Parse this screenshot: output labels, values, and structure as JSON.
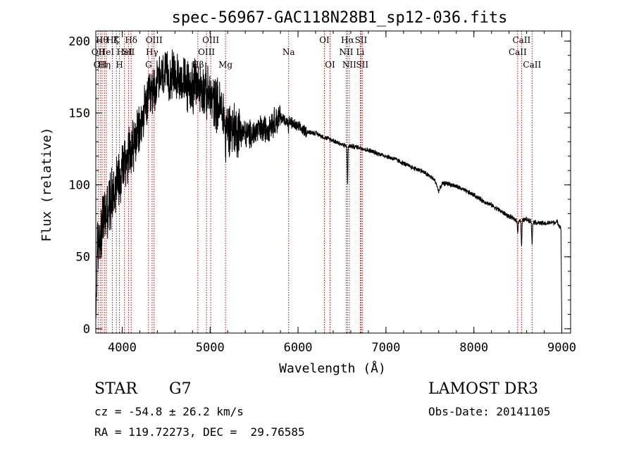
{
  "chart_data": {
    "type": "line",
    "title": "spec-56967-GAC118N28B1_sp12-036.fits",
    "xlabel": "Wavelength (Å)",
    "ylabel": "Flux (relative)",
    "xlim": [
      3700,
      9100
    ],
    "ylim": [
      -3,
      207
    ],
    "xticks": [
      4000,
      5000,
      6000,
      7000,
      8000,
      9000
    ],
    "yticks": [
      0,
      50,
      100,
      150,
      200
    ],
    "grid": false,
    "series": [
      {
        "name": "flux",
        "anchors": {
          "x": [
            3700,
            3705,
            3710,
            3720,
            3740,
            3780,
            3820,
            3860,
            3900,
            3950,
            4000,
            4050,
            4100,
            4150,
            4200,
            4250,
            4300,
            4350,
            4400,
            4450,
            4500,
            4550,
            4600,
            4650,
            4700,
            4750,
            4800,
            4850,
            4900,
            4950,
            5000,
            5050,
            5100,
            5150,
            5200,
            5250,
            5300,
            5350,
            5400,
            5450,
            5500,
            5550,
            5600,
            5650,
            5700,
            5750,
            5800,
            5850,
            5900,
            5950,
            6000,
            6100,
            6200,
            6300,
            6400,
            6500,
            6560,
            6600,
            6700,
            6800,
            6900,
            7000,
            7100,
            7200,
            7300,
            7400,
            7500,
            7600,
            7700,
            7800,
            7900,
            8000,
            8100,
            8200,
            8300,
            8400,
            8500,
            8600,
            8700,
            8800,
            8900,
            8950,
            8990,
            9000
          ],
          "y": [
            0,
            30,
            45,
            55,
            65,
            75,
            80,
            88,
            95,
            105,
            112,
            120,
            125,
            130,
            138,
            150,
            160,
            165,
            172,
            175,
            175,
            176,
            175,
            174,
            172,
            168,
            168,
            170,
            168,
            165,
            160,
            158,
            155,
            150,
            140,
            140,
            138,
            138,
            135,
            135,
            136,
            138,
            138,
            140,
            143,
            145,
            147,
            145,
            144,
            142,
            140,
            137,
            136,
            133,
            131,
            128,
            127,
            127,
            126,
            124,
            122,
            120,
            118,
            115,
            112,
            110,
            106,
            101,
            101,
            99,
            96,
            93,
            89,
            86,
            82,
            78,
            75,
            76,
            74,
            73,
            74,
            74,
            70,
            0
          ]
        },
        "noise": [
          {
            "x": [
              3700,
              4150
            ],
            "amp": 25
          },
          {
            "x": [
              4150,
              4700
            ],
            "amp": 20
          },
          {
            "x": [
              4700,
              5350
            ],
            "amp": 22
          },
          {
            "x": [
              5350,
              5800
            ],
            "amp": 12
          },
          {
            "x": [
              5800,
              6100
            ],
            "amp": 5
          },
          {
            "x": [
              6100,
              9000
            ],
            "amp": 2
          }
        ],
        "absorption": [
          {
            "x": 6563,
            "depth": 28,
            "width": 5
          },
          {
            "x": 8498,
            "depth": 8,
            "width": 6
          },
          {
            "x": 8542,
            "depth": 18,
            "width": 6
          },
          {
            "x": 8662,
            "depth": 16,
            "width": 6
          },
          {
            "x": 7600,
            "depth": 5,
            "width": 25
          },
          {
            "x": 5890,
            "depth": 6,
            "width": 5
          },
          {
            "x": 5175,
            "depth": 15,
            "width": 8
          }
        ]
      }
    ],
    "line_markers": {
      "color": "#d00000",
      "lines": [
        {
          "x": 3727,
          "label": "OII",
          "row": 2
        },
        {
          "x": 3750,
          "label": "OII",
          "row": 3
        },
        {
          "x": 3771,
          "label": "Hθ",
          "row": 1
        },
        {
          "x": 3798,
          "label": "Hη",
          "row": 3
        },
        {
          "x": 3820,
          "label": "HeI",
          "row": 2
        },
        {
          "x": 3889,
          "label": "Hζ",
          "row": 1
        },
        {
          "x": 3934,
          "label": "K",
          "row": 1
        },
        {
          "x": 3969,
          "label": "H",
          "row": 3
        },
        {
          "x": 4026,
          "label": "HeI",
          "row": 2
        },
        {
          "x": 4072,
          "label": "SII",
          "row": 2
        },
        {
          "x": 4102,
          "label": "Hδ",
          "row": 1
        },
        {
          "x": 4300,
          "label": "G",
          "row": 3
        },
        {
          "x": 4340,
          "label": "Hγ",
          "row": 2
        },
        {
          "x": 4363,
          "label": "OIII",
          "row": 1
        },
        {
          "x": 4861,
          "label": "Hβ",
          "row": 3
        },
        {
          "x": 4959,
          "label": "OIII",
          "row": 2
        },
        {
          "x": 5007,
          "label": "OIII",
          "row": 1
        },
        {
          "x": 5175,
          "label": "Mg",
          "row": 3
        },
        {
          "x": 5893,
          "label": "Na",
          "row": 2
        },
        {
          "x": 6300,
          "label": "OI",
          "row": 1
        },
        {
          "x": 6364,
          "label": "OI",
          "row": 3
        },
        {
          "x": 6548,
          "label": "NII",
          "row": 2
        },
        {
          "x": 6563,
          "label": "Hα",
          "row": 1
        },
        {
          "x": 6583,
          "label": "NII",
          "row": 3
        },
        {
          "x": 6708,
          "label": "Li",
          "row": 2
        },
        {
          "x": 6716,
          "label": "SII",
          "row": 1
        },
        {
          "x": 6731,
          "label": "SII",
          "row": 3
        },
        {
          "x": 8498,
          "label": "CaII",
          "row": 2
        },
        {
          "x": 8542,
          "label": "CaII",
          "row": 1
        },
        {
          "x": 8662,
          "label": "CaII",
          "row": 3
        }
      ]
    }
  },
  "info": {
    "object_class": "STAR",
    "subclass": "G7",
    "survey": "LAMOST DR3",
    "cz_text": "cz = -54.8 ± 26.2 km/s",
    "obs_date_text": "Obs-Date: 20141105",
    "coords_text": "RA = 119.72273, DEC =  29.76585"
  }
}
